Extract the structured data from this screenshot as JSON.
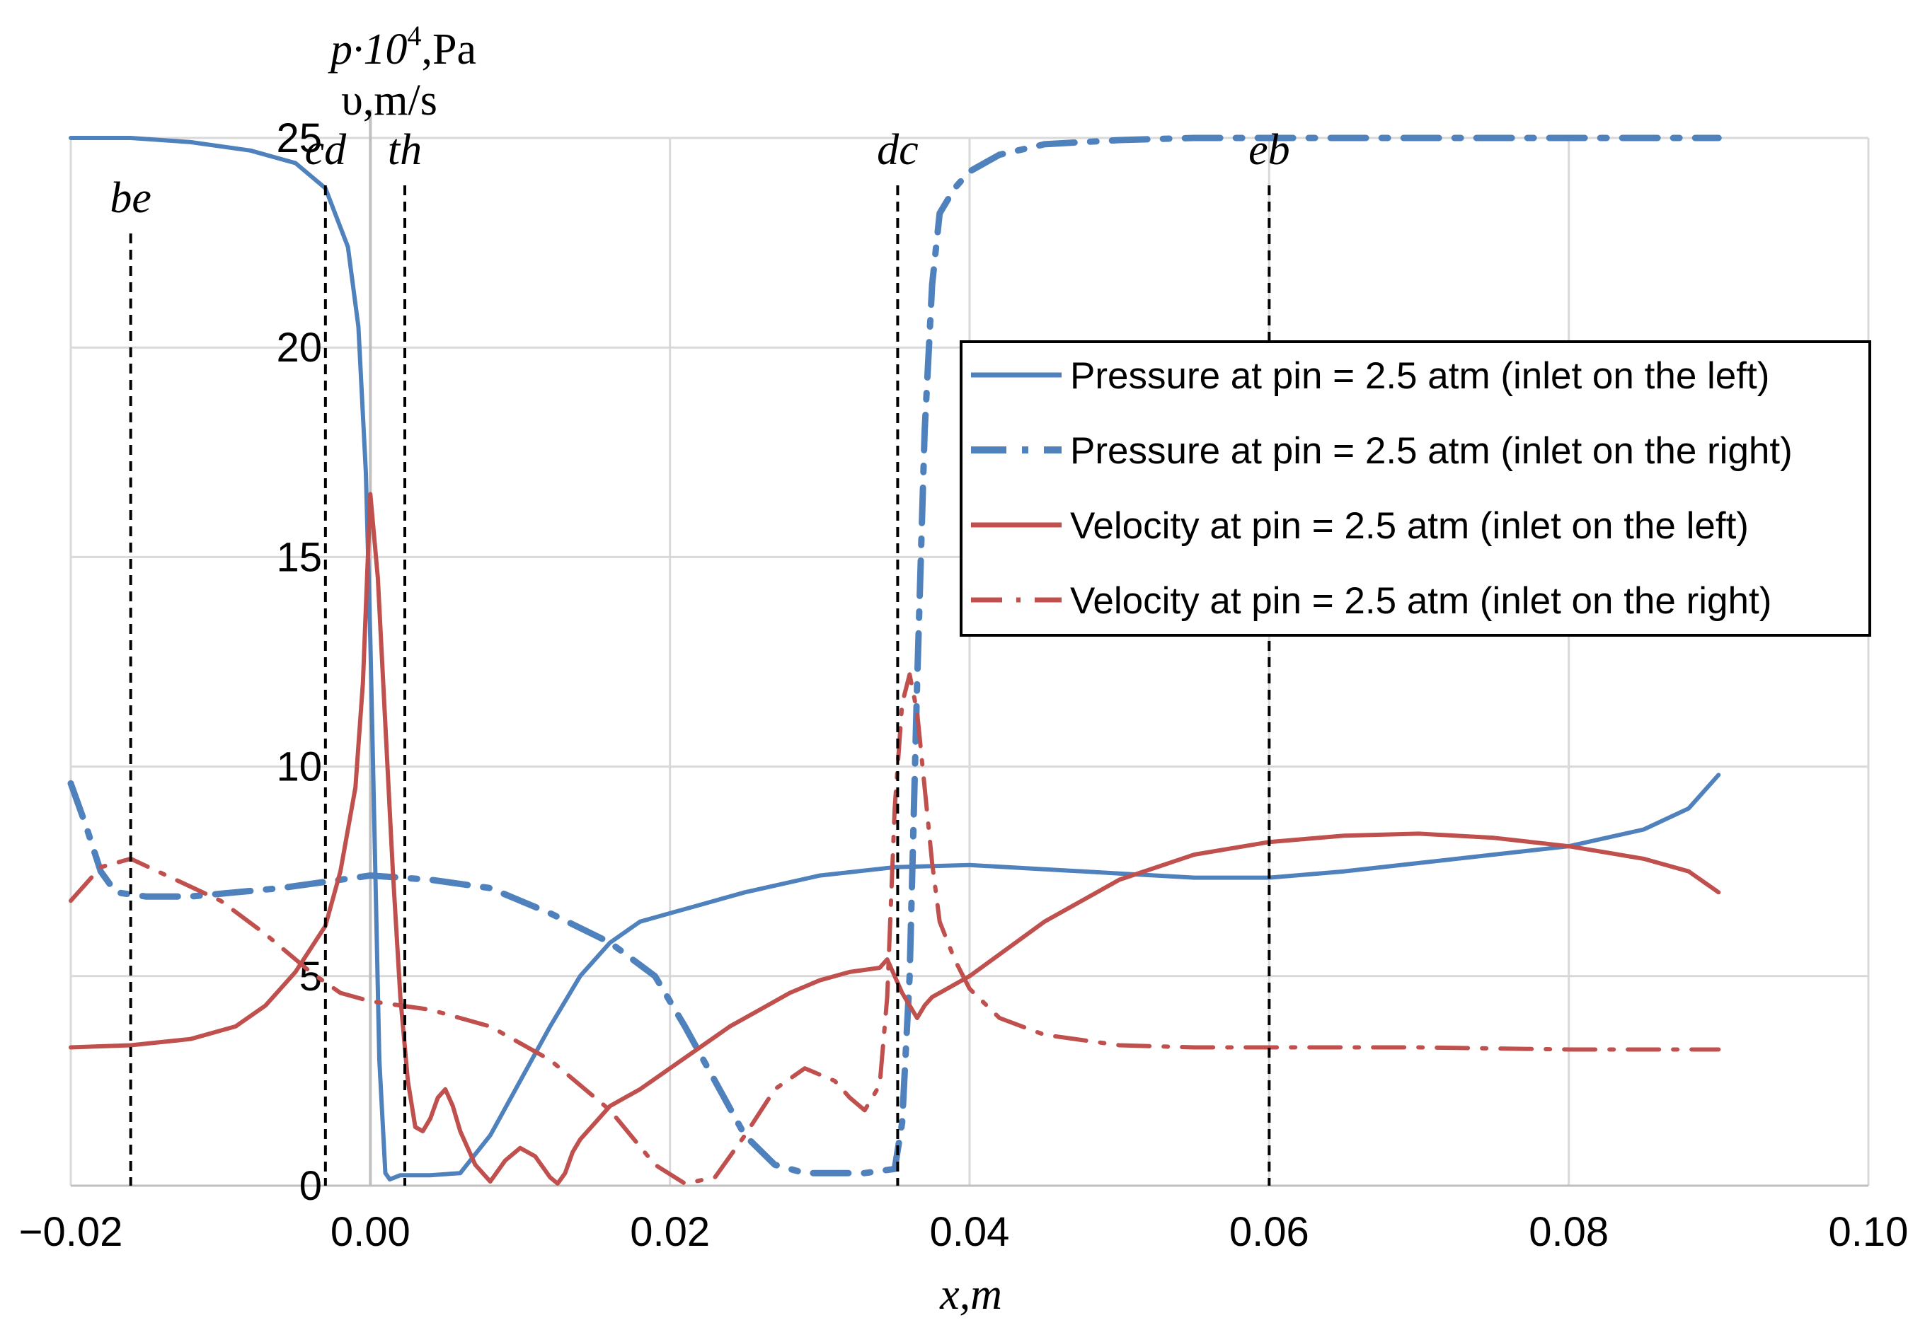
{
  "chart_data": {
    "type": "line",
    "y_title_line1": "p·10",
    "y_title_sup": "4",
    "y_title_line1_unit": ",Pa",
    "y_title_line2": "υ,m/s",
    "xlabel": "x,m",
    "xlim": [
      -0.02,
      0.1
    ],
    "ylim": [
      0,
      25
    ],
    "x_ticks": [
      -0.02,
      0.0,
      0.02,
      0.04,
      0.06,
      0.08,
      0.1
    ],
    "x_tick_labels": [
      "−0.02",
      "0.00",
      "0.02",
      "0.04",
      "0.06",
      "0.08",
      "0.10"
    ],
    "y_ticks": [
      0,
      5,
      10,
      15,
      20,
      25
    ],
    "y_tick_labels": [
      "0",
      "5",
      "10",
      "15",
      "20",
      "25"
    ],
    "grid": true,
    "legend_position": "center-right",
    "markers": [
      {
        "label": "be",
        "x": -0.016
      },
      {
        "label": "cd",
        "x": -0.003
      },
      {
        "label": "th",
        "x": 0.0023
      },
      {
        "label": "dc",
        "x": 0.0352
      },
      {
        "label": "eb",
        "x": 0.06
      }
    ],
    "series": [
      {
        "name": "Pressure at pin = 2.5 atm (inlet on the left)",
        "color": "#4f81bd",
        "style": "solid",
        "x": [
          -0.02,
          -0.016,
          -0.012,
          -0.008,
          -0.005,
          -0.003,
          -0.0015,
          -0.0008,
          -0.0003,
          0.0,
          0.0003,
          0.0006,
          0.001,
          0.0013,
          0.002,
          0.004,
          0.006,
          0.008,
          0.01,
          0.012,
          0.014,
          0.016,
          0.018,
          0.02,
          0.022,
          0.025,
          0.03,
          0.035,
          0.04,
          0.045,
          0.05,
          0.055,
          0.06,
          0.065,
          0.07,
          0.075,
          0.08,
          0.085,
          0.088,
          0.09
        ],
        "y": [
          25.0,
          25.0,
          24.9,
          24.7,
          24.4,
          23.8,
          22.4,
          20.5,
          17.0,
          13.0,
          8.0,
          3.0,
          0.3,
          0.15,
          0.25,
          0.25,
          0.3,
          1.2,
          2.5,
          3.8,
          5.0,
          5.8,
          6.3,
          6.5,
          6.7,
          7.0,
          7.4,
          7.6,
          7.65,
          7.55,
          7.45,
          7.35,
          7.35,
          7.5,
          7.7,
          7.9,
          8.1,
          8.5,
          9.0,
          9.8
        ]
      },
      {
        "name": "Pressure at pin = 2.5 atm (inlet on the right)",
        "color": "#4f81bd",
        "style": "dash-dot-bold",
        "x": [
          -0.02,
          -0.019,
          -0.018,
          -0.017,
          -0.015,
          -0.012,
          -0.009,
          -0.006,
          -0.003,
          0.0,
          0.004,
          0.008,
          0.012,
          0.016,
          0.019,
          0.021,
          0.023,
          0.025,
          0.027,
          0.029,
          0.031,
          0.033,
          0.035,
          0.0355,
          0.036,
          0.0365,
          0.037,
          0.0375,
          0.038,
          0.039,
          0.04,
          0.042,
          0.045,
          0.05,
          0.055,
          0.06,
          0.07,
          0.08,
          0.09
        ],
        "y": [
          9.6,
          8.6,
          7.5,
          7.0,
          6.9,
          6.9,
          7.0,
          7.1,
          7.25,
          7.4,
          7.3,
          7.1,
          6.5,
          5.8,
          5.0,
          3.8,
          2.5,
          1.2,
          0.5,
          0.3,
          0.3,
          0.3,
          0.4,
          1.5,
          5.0,
          12.0,
          18.0,
          21.5,
          23.2,
          23.8,
          24.2,
          24.6,
          24.85,
          24.95,
          25.0,
          25.0,
          25.0,
          25.0,
          25.0
        ]
      },
      {
        "name": "Velocity at pin = 2.5 atm (inlet on the left)",
        "color": "#c0504d",
        "style": "solid",
        "x": [
          -0.02,
          -0.016,
          -0.012,
          -0.009,
          -0.007,
          -0.005,
          -0.003,
          -0.002,
          -0.001,
          -0.0005,
          0.0,
          0.0005,
          0.001,
          0.0015,
          0.002,
          0.0025,
          0.003,
          0.0035,
          0.004,
          0.0045,
          0.005,
          0.0055,
          0.006,
          0.007,
          0.008,
          0.009,
          0.01,
          0.011,
          0.012,
          0.0125,
          0.013,
          0.0135,
          0.014,
          0.015,
          0.016,
          0.018,
          0.02,
          0.022,
          0.024,
          0.026,
          0.028,
          0.03,
          0.032,
          0.034,
          0.0345,
          0.035,
          0.0355,
          0.036,
          0.0365,
          0.037,
          0.0375,
          0.038,
          0.04,
          0.045,
          0.05,
          0.055,
          0.06,
          0.065,
          0.07,
          0.075,
          0.08,
          0.085,
          0.088,
          0.09
        ],
        "y": [
          3.3,
          3.35,
          3.5,
          3.8,
          4.3,
          5.1,
          6.2,
          7.5,
          9.5,
          12.0,
          16.5,
          14.5,
          11.0,
          7.5,
          4.5,
          2.5,
          1.4,
          1.3,
          1.6,
          2.1,
          2.3,
          1.9,
          1.3,
          0.5,
          0.1,
          0.6,
          0.9,
          0.7,
          0.2,
          0.05,
          0.3,
          0.8,
          1.1,
          1.5,
          1.9,
          2.3,
          2.8,
          3.3,
          3.8,
          4.2,
          4.6,
          4.9,
          5.1,
          5.2,
          5.4,
          5.0,
          4.6,
          4.3,
          4.0,
          4.3,
          4.5,
          4.6,
          5.0,
          6.3,
          7.3,
          7.9,
          8.2,
          8.35,
          8.4,
          8.3,
          8.1,
          7.8,
          7.5,
          7.0
        ]
      },
      {
        "name": "Velocity at pin = 2.5 atm (inlet on the right)",
        "color": "#c0504d",
        "style": "dash-dot",
        "x": [
          -0.02,
          -0.018,
          -0.016,
          -0.013,
          -0.01,
          -0.007,
          -0.004,
          -0.002,
          0.0,
          0.004,
          0.008,
          0.012,
          0.016,
          0.019,
          0.021,
          0.023,
          0.025,
          0.027,
          0.029,
          0.031,
          0.032,
          0.033,
          0.034,
          0.0345,
          0.035,
          0.0355,
          0.036,
          0.0365,
          0.037,
          0.0375,
          0.038,
          0.039,
          0.04,
          0.042,
          0.045,
          0.05,
          0.055,
          0.06,
          0.07,
          0.08,
          0.09
        ],
        "y": [
          6.8,
          7.6,
          7.8,
          7.3,
          6.8,
          6.0,
          5.1,
          4.6,
          4.4,
          4.2,
          3.8,
          3.0,
          1.8,
          0.5,
          0.05,
          0.2,
          1.2,
          2.3,
          2.8,
          2.5,
          2.1,
          1.8,
          2.4,
          4.5,
          9.0,
          11.5,
          12.2,
          11.3,
          9.5,
          7.7,
          6.3,
          5.4,
          4.7,
          4.0,
          3.6,
          3.35,
          3.3,
          3.3,
          3.3,
          3.25,
          3.25
        ]
      }
    ]
  }
}
